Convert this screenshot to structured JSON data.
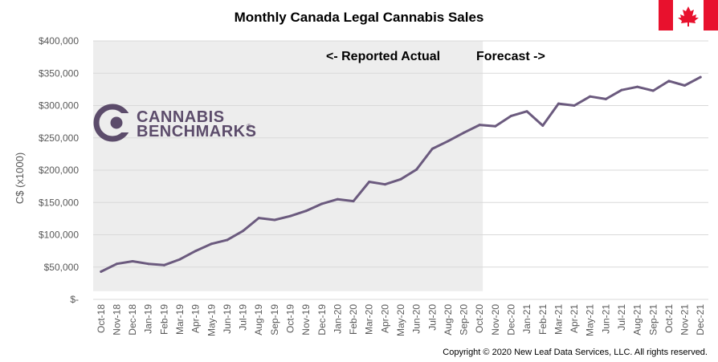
{
  "chart_data": {
    "type": "line",
    "title": "Monthly Canada Legal Cannabis Sales",
    "ylabel": "C$ (x1000)",
    "xlabel": "",
    "ylim": [
      0,
      400000
    ],
    "yticks": [
      {
        "value": 0,
        "label": "$-"
      },
      {
        "value": 50000,
        "label": "$50,000"
      },
      {
        "value": 100000,
        "label": "$100,000"
      },
      {
        "value": 150000,
        "label": "$150,000"
      },
      {
        "value": 200000,
        "label": "$200,000"
      },
      {
        "value": 250000,
        "label": "$250,000"
      },
      {
        "value": 300000,
        "label": "$300,000"
      },
      {
        "value": 350000,
        "label": "$350,000"
      },
      {
        "value": 400000,
        "label": "$400,000"
      }
    ],
    "grid": true,
    "categories": [
      "Oct-18",
      "Nov-18",
      "Dec-18",
      "Jan-19",
      "Feb-19",
      "Mar-19",
      "Apr-19",
      "May-19",
      "Jun-19",
      "Jul-19",
      "Aug-19",
      "Sep-19",
      "Oct-19",
      "Nov-19",
      "Dec-19",
      "Jan-20",
      "Feb-20",
      "Mar-20",
      "Apr-20",
      "May-20",
      "Jun-20",
      "Jul-20",
      "Aug-20",
      "Sep-20",
      "Oct-20",
      "Nov-20",
      "Dec-20",
      "Jan-21",
      "Feb-21",
      "Mar-21",
      "Apr-21",
      "May-21",
      "Jun-21",
      "Jul-21",
      "Aug-21",
      "Sep-21",
      "Oct-21",
      "Nov-21",
      "Dec-21"
    ],
    "series": [
      {
        "color": "#6b5a7e",
        "values": [
          43000,
          55000,
          59000,
          55000,
          53000,
          62000,
          75000,
          86000,
          92000,
          106000,
          126000,
          123000,
          129000,
          137000,
          148000,
          155000,
          152000,
          182000,
          178000,
          186000,
          201000,
          233000,
          245000,
          258000,
          270000,
          268000,
          284000,
          291000,
          269000,
          303000,
          300000,
          314000,
          310000,
          324000,
          329000,
          323000,
          338000,
          331000,
          344000
        ]
      }
    ],
    "shaded_region": {
      "from": "Oct-18",
      "to": "Oct-20",
      "color": "#ededed"
    },
    "annotations": {
      "actual": "<- Reported Actual",
      "forecast": "Forecast ->"
    }
  },
  "logo": {
    "line1": "CANNABIS",
    "line2": "BENCHMARKS",
    "mark": "®",
    "color": "#5c4c6b"
  },
  "flag": {
    "name": "canada-flag-icon",
    "red": "#e8112d",
    "white": "#ffffff"
  },
  "copyright": "Copyright © 2020 New Leaf Data Services, LLC.  All rights reserved."
}
